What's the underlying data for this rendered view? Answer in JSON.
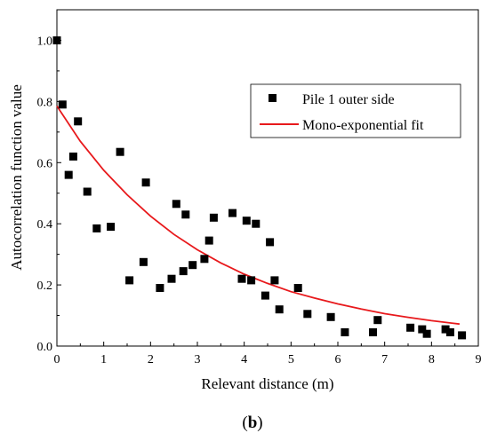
{
  "chart_data": {
    "type": "scatter",
    "xlabel": "Relevant distance (m)",
    "ylabel": "Autocorrelation function value",
    "xlim": [
      0,
      9
    ],
    "ylim": [
      0,
      1.1
    ],
    "x_ticks": [
      "0",
      "1",
      "2",
      "3",
      "4",
      "5",
      "6",
      "7",
      "8",
      "9"
    ],
    "y_ticks": [
      "0.0",
      "0.2",
      "0.4",
      "0.6",
      "0.8",
      "1.0"
    ],
    "legend_position": "top-right",
    "caption_open": "(",
    "caption_letter": "b",
    "caption_close": ")",
    "series": [
      {
        "name": "Pile 1 outer side",
        "kind": "scatter",
        "marker": "square",
        "color": "#000000",
        "x": [
          0.0,
          0.12,
          0.25,
          0.35,
          0.45,
          0.65,
          0.85,
          1.15,
          1.35,
          1.55,
          1.85,
          1.9,
          2.2,
          2.45,
          2.55,
          2.7,
          2.75,
          2.9,
          3.15,
          3.25,
          3.35,
          3.75,
          3.95,
          4.05,
          4.15,
          4.25,
          4.45,
          4.55,
          4.65,
          4.75,
          5.15,
          5.35,
          5.85,
          6.15,
          6.75,
          6.85,
          7.55,
          7.8,
          7.9,
          8.3,
          8.4,
          8.65
        ],
        "y": [
          1.0,
          0.79,
          0.56,
          0.62,
          0.735,
          0.505,
          0.385,
          0.39,
          0.635,
          0.215,
          0.275,
          0.535,
          0.19,
          0.22,
          0.465,
          0.245,
          0.43,
          0.265,
          0.285,
          0.345,
          0.42,
          0.435,
          0.22,
          0.41,
          0.215,
          0.4,
          0.165,
          0.34,
          0.215,
          0.12,
          0.19,
          0.105,
          0.095,
          0.045,
          0.045,
          0.085,
          0.06,
          0.055,
          0.04,
          0.055,
          0.045,
          0.035
        ]
      },
      {
        "name": "Mono-exponential fit",
        "kind": "line",
        "color": "#e8191c",
        "x": [
          0,
          0.5,
          1,
          1.5,
          2,
          2.5,
          3,
          3.5,
          4,
          4.5,
          5,
          5.5,
          6,
          6.5,
          7,
          7.5,
          8,
          8.6
        ],
        "y": [
          0.785,
          0.67,
          0.575,
          0.495,
          0.425,
          0.365,
          0.315,
          0.272,
          0.235,
          0.205,
          0.178,
          0.157,
          0.138,
          0.121,
          0.106,
          0.094,
          0.083,
          0.072
        ]
      }
    ]
  }
}
